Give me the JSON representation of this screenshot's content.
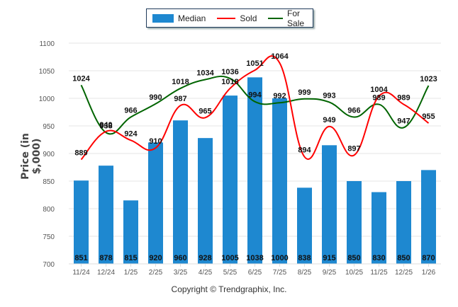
{
  "chart_data": {
    "type": "bar",
    "title": "",
    "xlabel": "",
    "ylabel": "Price (in $,000)",
    "ylim": [
      700,
      1100
    ],
    "yticks": [
      700,
      750,
      800,
      850,
      900,
      950,
      1000,
      1050,
      1100
    ],
    "grid": true,
    "legend_position": "top-center",
    "categories": [
      "11/24",
      "12/24",
      "1/25",
      "2/25",
      "3/25",
      "4/25",
      "5/25",
      "6/25",
      "7/25",
      "8/25",
      "9/25",
      "10/25",
      "11/25",
      "12/25",
      "1/26"
    ],
    "series": [
      {
        "name": "Median",
        "kind": "bar",
        "color": "#1e88d0",
        "values": [
          851,
          878,
          815,
          920,
          960,
          928,
          1005,
          1038,
          1000,
          838,
          915,
          850,
          830,
          850,
          870
        ]
      },
      {
        "name": "Sold",
        "kind": "line",
        "color": "#ff0000",
        "values": [
          889,
          940,
          924,
          910,
          987,
          965,
          1018,
          1051,
          1064,
          894,
          949,
          897,
          1004,
          989,
          955
        ]
      },
      {
        "name": "For Sale",
        "kind": "line",
        "color": "#006400",
        "values": [
          1024,
          938,
          966,
          990,
          1018,
          1034,
          1036,
          994,
          992,
          999,
          993,
          966,
          989,
          947,
          1023
        ]
      }
    ],
    "footer": "Copyright © Trendgraphix, Inc."
  }
}
